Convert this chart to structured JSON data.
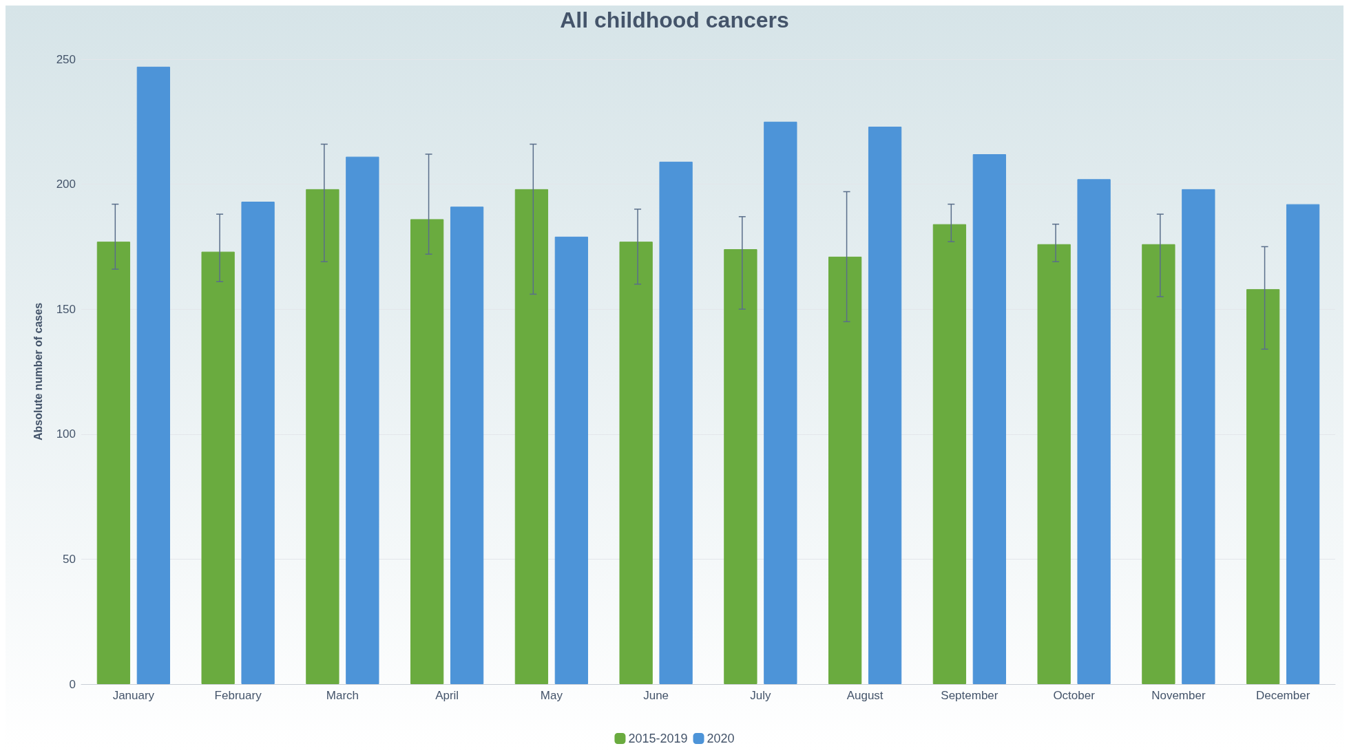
{
  "chart_data": {
    "type": "bar",
    "title": "All childhood cancers",
    "ylabel": "Absolute number of cases",
    "categories": [
      "January",
      "February",
      "March",
      "April",
      "May",
      "June",
      "July",
      "August",
      "September",
      "October",
      "November",
      "December"
    ],
    "series": [
      {
        "name": "2015-2019",
        "color": "#6aab3f",
        "values": [
          177,
          173,
          198,
          186,
          198,
          177,
          174,
          171,
          184,
          176,
          176,
          158
        ],
        "errors": [
          [
            166,
            192
          ],
          [
            161,
            188
          ],
          [
            169,
            216
          ],
          [
            172,
            212
          ],
          [
            156,
            216
          ],
          [
            160,
            190
          ],
          [
            150,
            187
          ],
          [
            145,
            197
          ],
          [
            177,
            192
          ],
          [
            169,
            184
          ],
          [
            155,
            188
          ],
          [
            134,
            175
          ]
        ]
      },
      {
        "name": "2020",
        "color": "#4d94d8",
        "values": [
          247,
          193,
          211,
          191,
          179,
          209,
          225,
          223,
          212,
          202,
          198,
          192
        ]
      }
    ],
    "ylim": [
      0,
      250
    ],
    "yticks": [
      0,
      50,
      100,
      150,
      200,
      250
    ],
    "grid": "y",
    "legend": "bottom"
  }
}
